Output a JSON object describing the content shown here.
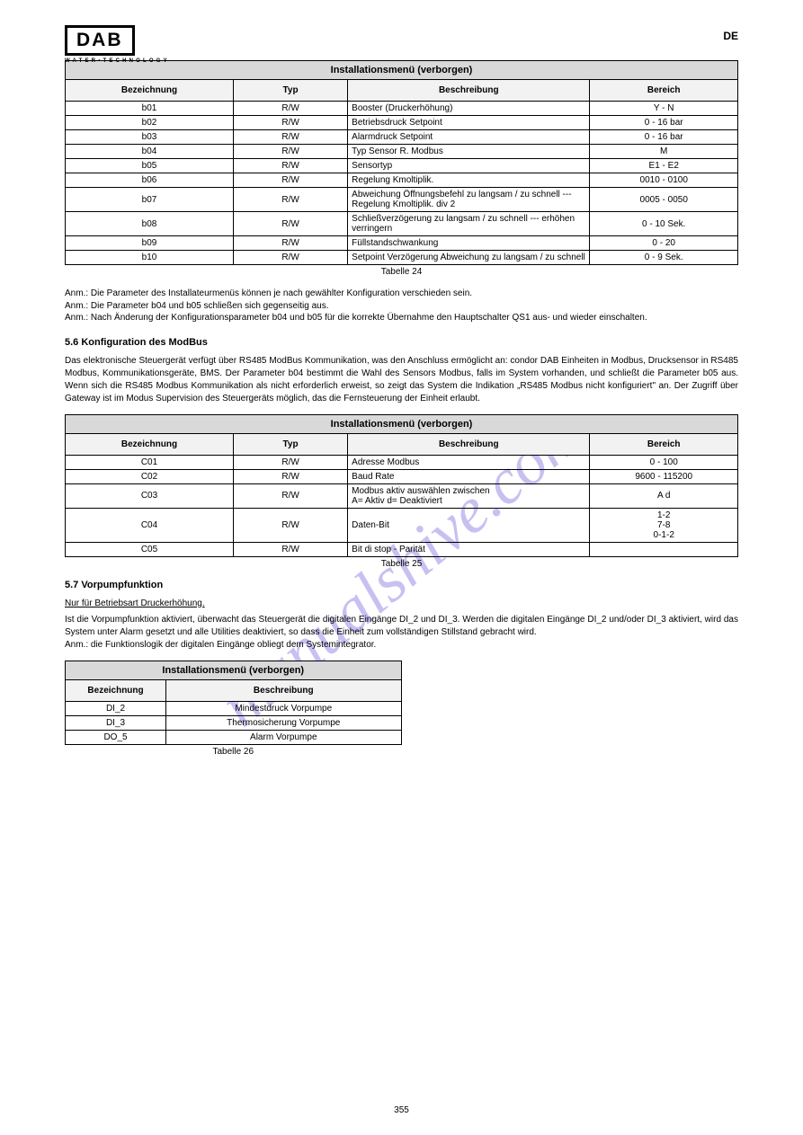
{
  "logo": {
    "brand": "DAB",
    "tagline": "WATER•TECHNOLOGY"
  },
  "lang_code": "DE",
  "watermark_text": "manualshive.com",
  "table24": {
    "title": "Installationsmenü (verborgen)",
    "headers": [
      "Bezeichnung",
      "Typ",
      "Beschreibung",
      "Bereich"
    ],
    "rows": [
      [
        "b01",
        "R/W",
        "Booster (Druckerhöhung)",
        "Y - N"
      ],
      [
        "b02",
        "R/W",
        "Betriebsdruck Setpoint",
        "0 - 16 bar"
      ],
      [
        "b03",
        "R/W",
        "Alarmdruck Setpoint",
        "0 - 16 bar"
      ],
      [
        "b04",
        "R/W",
        "Typ Sensor R. Modbus",
        "M"
      ],
      [
        "b05",
        "R/W",
        "Sensortyp",
        "E1 - E2"
      ],
      [
        "b06",
        "R/W",
        "Regelung Kmoltiplik.",
        "0010 - 0100"
      ],
      [
        "b07",
        "R/W",
        "Abweichung Öffnungsbefehl zu langsam / zu schnell --- Regelung Kmoltiplik. div 2",
        "0005 - 0050"
      ],
      [
        "b08",
        "R/W",
        "Schließverzögerung zu langsam / zu schnell --- erhöhen verringern",
        "0 - 10 Sek."
      ],
      [
        "b09",
        "R/W",
        "Füllstandschwankung",
        "0 - 20"
      ],
      [
        "b10",
        "R/W",
        "Setpoint Verzögerung Abweichung zu langsam / zu schnell",
        "0 - 9 Sek."
      ]
    ],
    "caption": "Tabelle 24"
  },
  "notes_text": "Anm.: Die Parameter des Installateurmenüs können je nach gewählter Konfiguration verschieden sein.\nAnm.: Die Parameter b04 und b05 schließen sich gegenseitig aus.\nAnm.: Nach Änderung der Konfigurationsparameter b04 und b05 für die korrekte Übernahme den Hauptschalter QS1 aus- und wieder einschalten.",
  "section_5_6_heading": "5.6      Konfiguration des ModBus",
  "section_5_6_text": "Das elektronische Steuergerät verfügt über RS485 ModBus Kommunikation, was den Anschluss ermöglicht an: condor DAB Einheiten in Modbus, Drucksensor in RS485 Modbus, Kommunikationsgeräte, BMS. Der Parameter b04 bestimmt die Wahl des Sensors Modbus, falls im System vorhanden, und schließt die Parameter b05 aus. Wenn sich die RS485 Modbus Kommunikation als nicht erforderlich erweist, so zeigt das System die Indikation „RS485 Modbus nicht konfiguriert\" an. Der Zugriff über Gateway ist im Modus Supervision des Steuergeräts möglich, das die Fernsteuerung der Einheit erlaubt.",
  "table25": {
    "title": "Installationsmenü (verborgen)",
    "headers": [
      "Bezeichnung",
      "Typ",
      "Beschreibung",
      "Bereich"
    ],
    "rows": [
      [
        "C01",
        "R/W",
        "Adresse Modbus",
        "0 - 100"
      ],
      [
        "C02",
        "R/W",
        "Baud Rate",
        "9600 - 115200"
      ],
      [
        "C03",
        "R/W",
        "Modbus aktiv auswählen zwischen\nA= Aktiv d= Deaktiviert",
        "A                d"
      ],
      [
        "C04",
        "R/W",
        "Daten-Bit",
        "1-2\n7-8\n0-1-2"
      ],
      [
        "C05",
        "R/W",
        "Bit di stop - Parität",
        ""
      ]
    ],
    "caption": "Tabelle 25"
  },
  "section_5_7_heading": "5.7      Vorpumpfunktion",
  "section_5_7_underline": "Nur für Betriebsart Druckerhöhung.",
  "section_5_7_text": "Ist die Vorpumpfunktion aktiviert, überwacht das Steuergerät die digitalen Eingänge DI_2 und DI_3. Werden die digitalen Eingänge DI_2 und/oder DI_3 aktiviert, wird das System unter Alarm gesetzt und alle Utilities deaktiviert, so dass die Einheit zum vollständigen Stillstand gebracht wird.\nAnm.: die Funktionslogik der digitalen Eingänge obliegt dem Systemintegrator.",
  "table26": {
    "title": "Installationsmenü (verborgen)",
    "headers": [
      "Bezeichnung",
      "Beschreibung"
    ],
    "rows": [
      [
        "DI_2",
        "Mindestdruck Vorpumpe"
      ],
      [
        "DI_3",
        "Thermosicherung Vorpumpe"
      ],
      [
        "DO_5",
        "Alarm Vorpumpe"
      ]
    ],
    "widths": [
      "30%",
      "70%"
    ],
    "caption": "Tabelle 26"
  },
  "page_number": "355"
}
